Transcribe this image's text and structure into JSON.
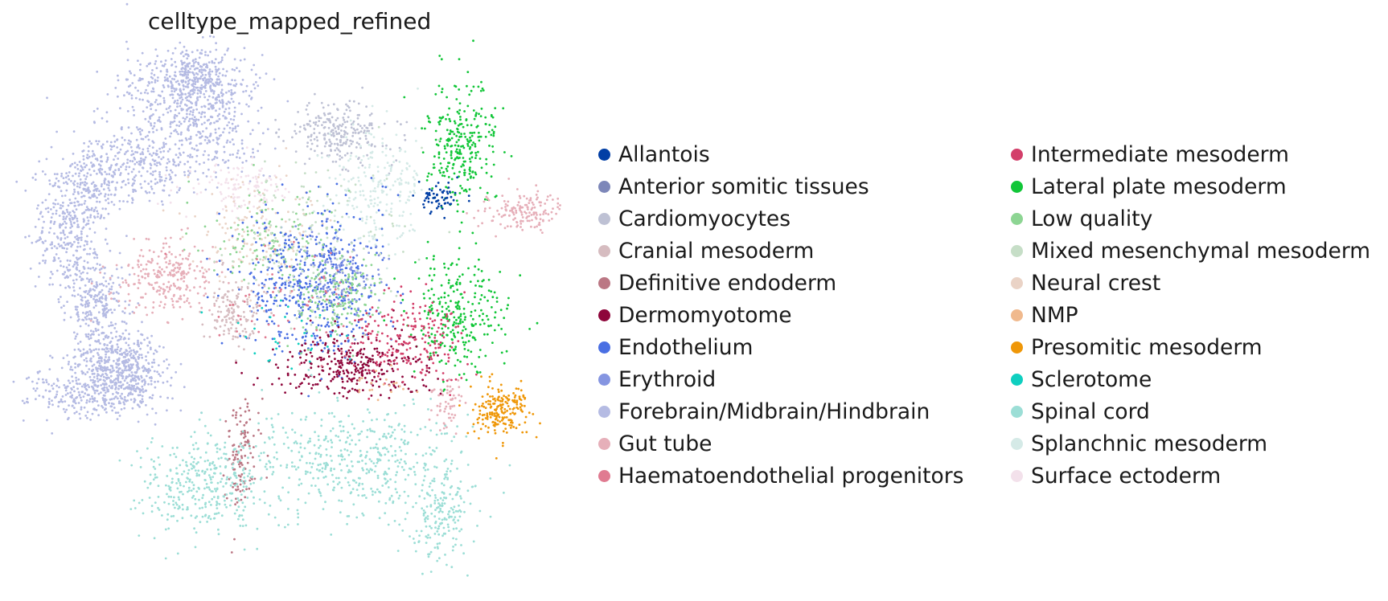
{
  "chart_data": {
    "type": "scatter",
    "title": "celltype_mapped_refined",
    "xlabel": "",
    "ylabel": "",
    "axes_visible": false,
    "grid": false,
    "legend_position": "right",
    "categories": [
      {
        "name": "Allantois",
        "color": "#023fa5"
      },
      {
        "name": "Anterior somitic tissues",
        "color": "#7d87b9"
      },
      {
        "name": "Cardiomyocytes",
        "color": "#bec1d4"
      },
      {
        "name": "Cranial mesoderm",
        "color": "#d6bcc0"
      },
      {
        "name": "Definitive endoderm",
        "color": "#bb7784"
      },
      {
        "name": "Dermomyotome",
        "color": "#8e063b"
      },
      {
        "name": "Endothelium",
        "color": "#4a6fe3"
      },
      {
        "name": "Erythroid",
        "color": "#8595e1"
      },
      {
        "name": "Forebrain/Midbrain/Hindbrain",
        "color": "#b5bbe3"
      },
      {
        "name": "Gut tube",
        "color": "#e6afb9"
      },
      {
        "name": "Haematoendothelial progenitors",
        "color": "#e07b91"
      },
      {
        "name": "Intermediate mesoderm",
        "color": "#d33f6a"
      },
      {
        "name": "Lateral plate mesoderm",
        "color": "#11c638"
      },
      {
        "name": "Low quality",
        "color": "#8dd593"
      },
      {
        "name": "Mixed mesenchymal mesoderm",
        "color": "#c6dec7"
      },
      {
        "name": "Neural crest",
        "color": "#ead3c6"
      },
      {
        "name": "NMP",
        "color": "#f0b98d"
      },
      {
        "name": "Presomitic mesoderm",
        "color": "#ef9708"
      },
      {
        "name": "Sclerotome",
        "color": "#0fcfc0"
      },
      {
        "name": "Spinal cord",
        "color": "#9cded6"
      },
      {
        "name": "Splanchnic mesoderm",
        "color": "#d5eae7"
      },
      {
        "name": "Surface ectoderm",
        "color": "#f3e1eb"
      }
    ]
  }
}
